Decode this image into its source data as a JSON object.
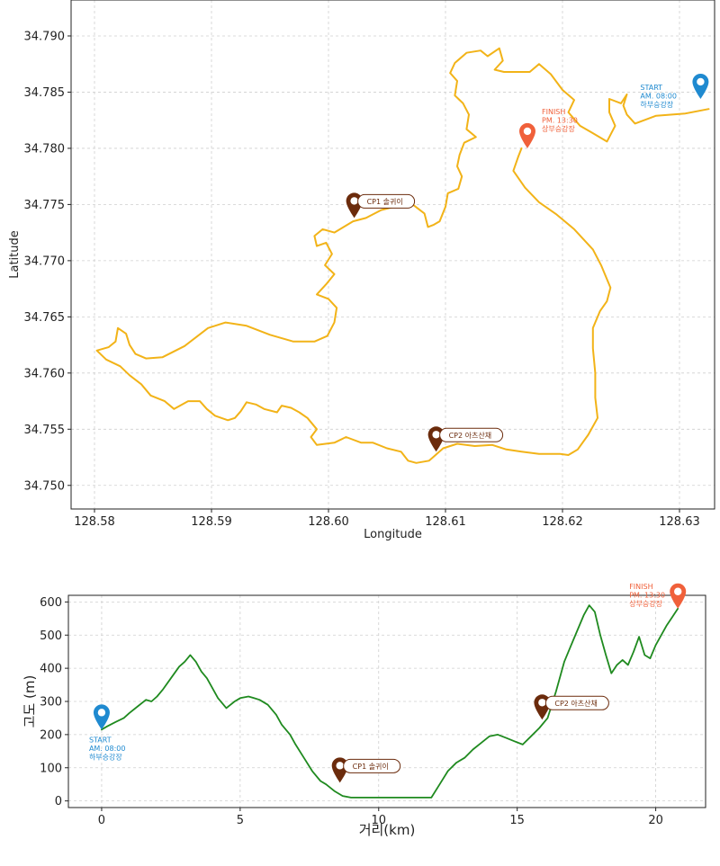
{
  "colors": {
    "route": "#f2b318",
    "elevation": "#1f8a1f",
    "start": "#1f8ad0",
    "finish": "#f0603a",
    "checkpoint": "#6b2b0c",
    "grid": "#cfcfcf"
  },
  "chart_data": [
    {
      "type": "line",
      "title": "",
      "xlabel": "Longitude",
      "ylabel": "Latitude",
      "xlim": [
        128.578,
        128.633
      ],
      "ylim": [
        34.7479,
        34.7932
      ],
      "xticks": [
        "128.58",
        "128.59",
        "128.60",
        "128.61",
        "128.62",
        "128.63"
      ],
      "yticks": [
        "34.750",
        "34.755",
        "34.760",
        "34.765",
        "34.770",
        "34.775",
        "34.780",
        "34.785",
        "34.790"
      ],
      "grid": true,
      "series": [
        {
          "points": [
            [
              128.6325,
              34.7835
            ],
            [
              128.6305,
              34.7831
            ],
            [
              128.628,
              34.7829
            ],
            [
              128.6262,
              34.7822
            ],
            [
              128.6255,
              34.783
            ],
            [
              128.6252,
              34.7838
            ],
            [
              128.6255,
              34.7848
            ],
            [
              128.625,
              34.784
            ],
            [
              128.624,
              34.7844
            ],
            [
              128.624,
              34.7832
            ],
            [
              128.6245,
              34.782
            ],
            [
              128.6238,
              34.7806
            ],
            [
              128.6225,
              34.7814
            ],
            [
              128.6215,
              34.782
            ],
            [
              128.6205,
              34.7832
            ],
            [
              128.621,
              34.7843
            ],
            [
              128.62,
              34.7852
            ],
            [
              128.619,
              34.7866
            ],
            [
              128.618,
              34.7875
            ],
            [
              128.6172,
              34.7868
            ],
            [
              128.6162,
              34.7868
            ],
            [
              128.615,
              34.7868
            ],
            [
              128.6142,
              34.787
            ],
            [
              128.6149,
              34.7878
            ],
            [
              128.6146,
              34.7889
            ],
            [
              128.6136,
              34.7882
            ],
            [
              128.613,
              34.7887
            ],
            [
              128.6118,
              34.7885
            ],
            [
              128.6108,
              34.7876
            ],
            [
              128.6104,
              34.7867
            ],
            [
              128.611,
              34.786
            ],
            [
              128.6108,
              34.7847
            ],
            [
              128.6115,
              34.784
            ],
            [
              128.612,
              34.783
            ],
            [
              128.6118,
              34.7817
            ],
            [
              128.6126,
              34.781
            ],
            [
              128.6116,
              34.7805
            ],
            [
              128.6112,
              34.7794
            ],
            [
              128.611,
              34.7784
            ],
            [
              128.6114,
              34.7775
            ],
            [
              128.6111,
              34.7764
            ],
            [
              128.6102,
              34.776
            ],
            [
              128.61,
              34.7748
            ],
            [
              128.6095,
              34.7735
            ],
            [
              128.609,
              34.7732
            ],
            [
              128.6085,
              34.773
            ],
            [
              128.6082,
              34.7742
            ],
            [
              128.6072,
              34.775
            ],
            [
              128.606,
              34.7749
            ],
            [
              128.6045,
              34.7745
            ],
            [
              128.6032,
              34.7738
            ],
            [
              128.6021,
              34.7735
            ],
            [
              128.6013,
              34.773
            ],
            [
              128.6005,
              34.7725
            ],
            [
              128.5995,
              34.7728
            ],
            [
              128.5988,
              34.7722
            ],
            [
              128.599,
              34.7713
            ],
            [
              128.5998,
              34.7716
            ],
            [
              128.6003,
              34.7706
            ],
            [
              128.5997,
              34.7696
            ],
            [
              128.6005,
              34.7688
            ],
            [
              128.5998,
              34.7679
            ],
            [
              128.599,
              34.767
            ],
            [
              128.6,
              34.7666
            ],
            [
              128.6007,
              34.7658
            ],
            [
              128.6005,
              34.7645
            ],
            [
              128.5999,
              34.7633
            ],
            [
              128.5988,
              34.7628
            ],
            [
              128.597,
              34.7628
            ],
            [
              128.595,
              34.7634
            ],
            [
              128.593,
              34.7642
            ],
            [
              128.5912,
              34.7645
            ],
            [
              128.5897,
              34.764
            ],
            [
              128.5887,
              34.7632
            ],
            [
              128.5877,
              34.7624
            ],
            [
              128.5858,
              34.7614
            ],
            [
              128.5844,
              34.7613
            ],
            [
              128.5835,
              34.7617
            ],
            [
              128.583,
              34.7625
            ],
            [
              128.5827,
              34.7635
            ],
            [
              128.582,
              34.764
            ],
            [
              128.5818,
              34.7628
            ],
            [
              128.5812,
              34.7623
            ],
            [
              128.5802,
              34.762
            ],
            [
              128.581,
              34.7612
            ],
            [
              128.5822,
              34.7606
            ],
            [
              128.583,
              34.7598
            ],
            [
              128.584,
              34.759
            ],
            [
              128.5848,
              34.758
            ],
            [
              128.586,
              34.7575
            ],
            [
              128.5868,
              34.7568
            ],
            [
              128.588,
              34.7575
            ],
            [
              128.589,
              34.7575
            ],
            [
              128.5896,
              34.7568
            ],
            [
              128.5903,
              34.7562
            ],
            [
              128.5914,
              34.7558
            ],
            [
              128.592,
              34.756
            ],
            [
              128.5925,
              34.7566
            ],
            [
              128.593,
              34.7574
            ],
            [
              128.5938,
              34.7572
            ],
            [
              128.5945,
              34.7568
            ],
            [
              128.5956,
              34.7565
            ],
            [
              128.596,
              34.7571
            ],
            [
              128.5968,
              34.7569
            ],
            [
              128.5975,
              34.7565
            ],
            [
              128.5982,
              34.756
            ],
            [
              128.599,
              34.755
            ],
            [
              128.5985,
              34.7543
            ],
            [
              128.599,
              34.7536
            ],
            [
              128.6005,
              34.7538
            ],
            [
              128.6015,
              34.7543
            ],
            [
              128.6028,
              34.7538
            ],
            [
              128.6038,
              34.7538
            ],
            [
              128.605,
              34.7533
            ],
            [
              128.6062,
              34.753
            ],
            [
              128.6068,
              34.7522
            ],
            [
              128.6075,
              34.752
            ],
            [
              128.6086,
              34.7522
            ],
            [
              128.6098,
              34.7533
            ],
            [
              128.611,
              34.7537
            ],
            [
              128.6125,
              34.7535
            ],
            [
              128.614,
              34.7536
            ],
            [
              128.6152,
              34.7532
            ],
            [
              128.6165,
              34.753
            ],
            [
              128.618,
              34.7528
            ],
            [
              128.6188,
              34.7528
            ],
            [
              128.6198,
              34.7528
            ],
            [
              128.6205,
              34.7527
            ],
            [
              128.6213,
              34.7532
            ],
            [
              128.6222,
              34.7545
            ],
            [
              128.623,
              34.756
            ],
            [
              128.6228,
              34.7578
            ],
            [
              128.6228,
              34.76
            ],
            [
              128.6226,
              34.7622
            ],
            [
              128.6226,
              34.764
            ],
            [
              128.6232,
              34.7655
            ],
            [
              128.6238,
              34.7664
            ],
            [
              128.6241,
              34.7676
            ],
            [
              128.6233,
              34.7696
            ],
            [
              128.6226,
              34.771
            ],
            [
              128.621,
              34.7728
            ],
            [
              128.6195,
              34.7741
            ],
            [
              128.618,
              34.7752
            ],
            [
              128.6168,
              34.7765
            ],
            [
              128.6158,
              34.778
            ],
            [
              128.6162,
              34.7792
            ],
            [
              128.6165,
              34.78
            ]
          ]
        }
      ],
      "markers": [
        {
          "kind": "start",
          "label_lines": [
            "START",
            "AM. 08:00",
            "하부승강장"
          ],
          "pos": [
            128.6318,
            34.7844
          ]
        },
        {
          "kind": "finish",
          "label_lines": [
            "FINISH",
            "PM. 13:30",
            "상부승강장"
          ],
          "pos": [
            128.617,
            34.78
          ]
        },
        {
          "kind": "checkpoint",
          "label_lines": [
            "CP1 솔귀이"
          ],
          "pos": [
            128.6022,
            34.7738
          ]
        },
        {
          "kind": "checkpoint",
          "label_lines": [
            "CP2 아츠산채"
          ],
          "pos": [
            128.6092,
            34.753
          ]
        }
      ]
    },
    {
      "type": "line",
      "title": "",
      "xlabel": "거리(km)",
      "ylabel": "고도 (m)",
      "xlim": [
        -1.2,
        21.8
      ],
      "ylim": [
        -20,
        620
      ],
      "xticks": [
        "0",
        "5",
        "10",
        "15",
        "20"
      ],
      "yticks": [
        "0",
        "100",
        "200",
        "300",
        "400",
        "500",
        "600"
      ],
      "grid": true,
      "series": [
        {
          "x": [
            0,
            0.2,
            0.5,
            0.8,
            1.0,
            1.3,
            1.6,
            1.8,
            2.0,
            2.2,
            2.5,
            2.8,
            3.0,
            3.2,
            3.4,
            3.6,
            3.8,
            4.0,
            4.2,
            4.5,
            4.8,
            5.0,
            5.3,
            5.5,
            5.7,
            6.0,
            6.3,
            6.5,
            6.8,
            7.0,
            7.3,
            7.6,
            7.9,
            8.1,
            8.4,
            8.7,
            9.0,
            9.3,
            9.6,
            10.0,
            10.5,
            11.0,
            11.5,
            11.9,
            12.2,
            12.5,
            12.8,
            13.1,
            13.4,
            13.7,
            14.0,
            14.3,
            14.6,
            14.9,
            15.2,
            15.5,
            15.8,
            16.1,
            16.4,
            16.7,
            17.0,
            17.2,
            17.4,
            17.6,
            17.8,
            18.0,
            18.2,
            18.4,
            18.6,
            18.8,
            19.0,
            19.2,
            19.4,
            19.6,
            19.8,
            20.0,
            20.2,
            20.4,
            20.6,
            20.8
          ],
          "y": [
            215,
            225,
            238,
            250,
            265,
            285,
            305,
            300,
            315,
            335,
            370,
            405,
            420,
            440,
            420,
            390,
            370,
            340,
            310,
            280,
            300,
            310,
            315,
            310,
            305,
            290,
            260,
            230,
            200,
            170,
            130,
            90,
            60,
            50,
            30,
            15,
            10,
            10,
            10,
            10,
            10,
            10,
            10,
            10,
            50,
            90,
            115,
            130,
            155,
            175,
            195,
            200,
            190,
            180,
            170,
            195,
            220,
            250,
            330,
            420,
            480,
            520,
            560,
            590,
            570,
            500,
            440,
            385,
            410,
            425,
            410,
            450,
            495,
            440,
            430,
            470,
            500,
            530,
            555,
            580
          ]
        }
      ],
      "markers": [
        {
          "kind": "start",
          "label_lines": [
            "START",
            "AM. 08:00",
            "하부승강장"
          ],
          "pos": [
            0,
            215
          ]
        },
        {
          "kind": "finish",
          "label_lines": [
            "FINISH",
            "PM. 13:30",
            "상부승강장"
          ],
          "pos": [
            20.8,
            580
          ]
        },
        {
          "kind": "checkpoint",
          "label_lines": [
            "CP1 솔귀이"
          ],
          "pos": [
            8.6,
            55
          ]
        },
        {
          "kind": "checkpoint",
          "label_lines": [
            "CP2 아츠산채"
          ],
          "pos": [
            15.9,
            245
          ]
        }
      ]
    }
  ]
}
